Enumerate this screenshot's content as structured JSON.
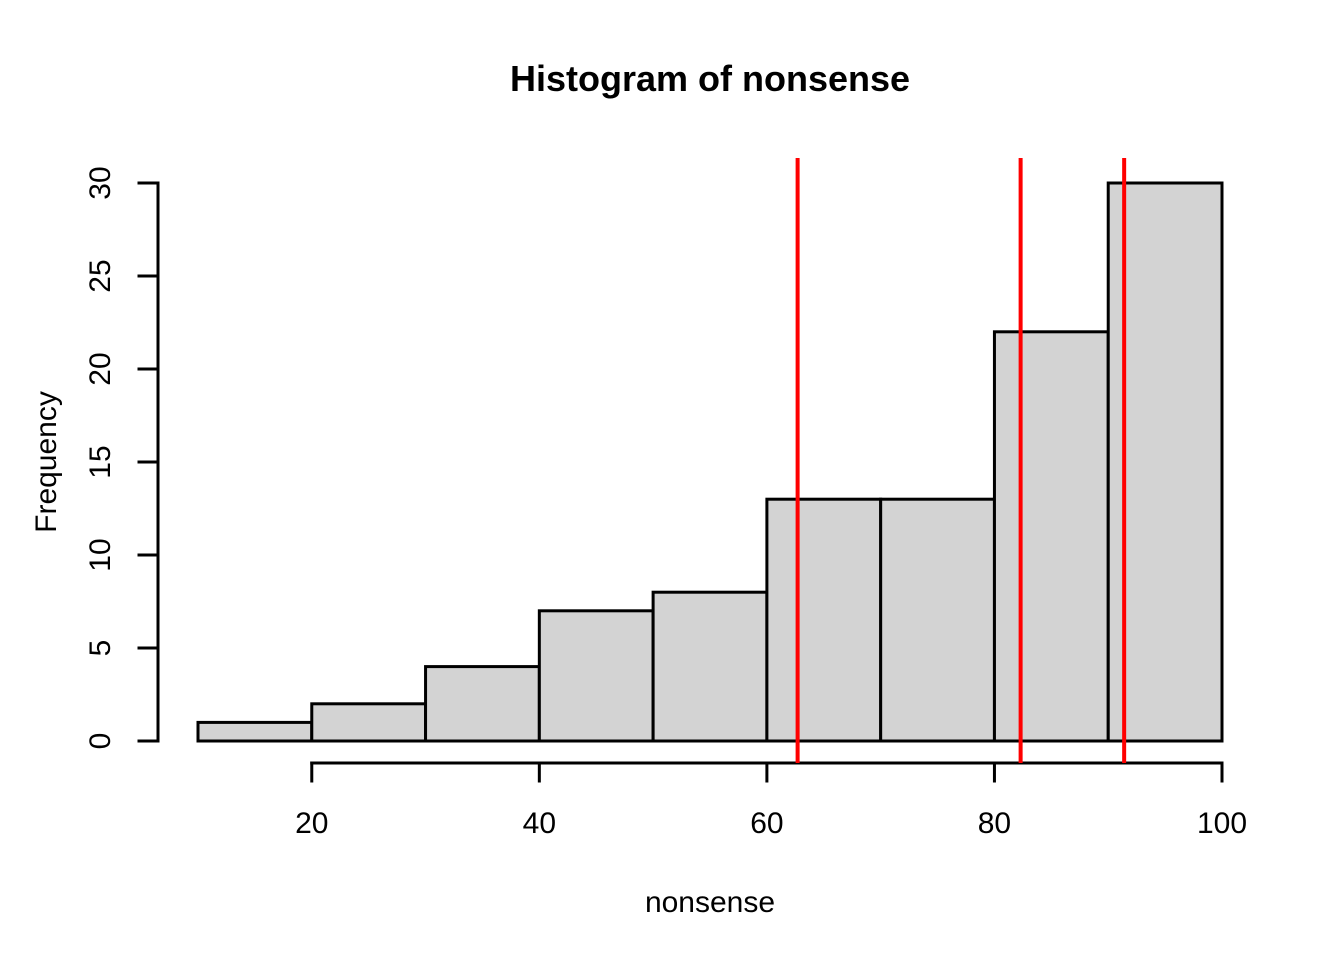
{
  "figure": {
    "background": "#FFFFFF"
  },
  "chart_data": {
    "type": "bar",
    "subtype": "histogram",
    "title": "Histogram of nonsense",
    "xlabel": "nonsense",
    "ylabel": "Frequency",
    "bin_breaks": [
      10,
      20,
      30,
      40,
      50,
      60,
      70,
      80,
      90,
      100
    ],
    "counts": [
      1,
      2,
      4,
      7,
      8,
      13,
      13,
      22,
      30
    ],
    "x_ticks": [
      20,
      40,
      60,
      80,
      100
    ],
    "y_ticks": [
      0,
      5,
      10,
      15,
      20,
      25,
      30
    ],
    "xlim": [
      10,
      100
    ],
    "ylim": [
      0,
      30
    ],
    "grid": false,
    "legend": null,
    "bar_fill": "#D3D3D3",
    "bar_border": "#000000",
    "axis_color": "#000000",
    "text_color": "#000000",
    "vlines": [
      {
        "x": 62.7,
        "color": "#FF0000"
      },
      {
        "x": 82.3,
        "color": "#FF0000"
      },
      {
        "x": 91.4,
        "color": "#FF0000"
      }
    ]
  }
}
